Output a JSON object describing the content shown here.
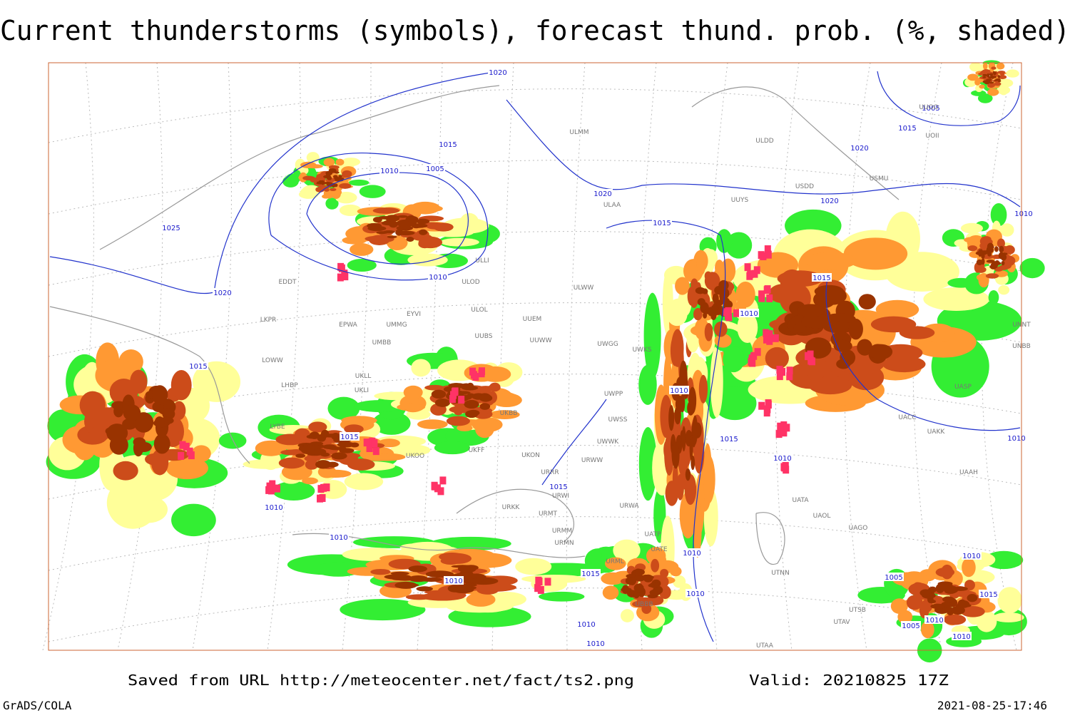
{
  "header": {
    "title": "Current thunderstorms (symbols), forecast thund. prob. (%, shaded)"
  },
  "footer": {
    "source": "Saved from URL http://meteocenter.net/fact/ts2.png",
    "valid": "Valid: 20210825 17Z",
    "software": "GrADS/COLA",
    "timestamp": "2021-08-25-17:46"
  },
  "isobar_labels": [
    1020,
    1015,
    1010,
    1005,
    1025,
    1020,
    1010,
    1020,
    1015,
    1020,
    1005,
    1015,
    1020,
    1015,
    1015,
    1015,
    1015,
    1010,
    1010,
    1010,
    1010,
    1015,
    1010,
    1010,
    1010,
    1010,
    1010,
    1015,
    1005,
    1010,
    1005,
    1010,
    1010,
    1015,
    1010,
    1010,
    1010
  ],
  "stations": [
    "ULMM",
    "ULDD",
    "USMU",
    "UUYS",
    "USDD",
    "ULAA",
    "ULLI",
    "ULOD",
    "ULOL",
    "ULWW",
    "EYVI",
    "UMMG",
    "EPWA",
    "EDDT",
    "LKPR",
    "UMBB",
    "UUEM",
    "UUWW",
    "UWGG",
    "UWKS",
    "UUBS",
    "UNNT",
    "UNBB",
    "UASP",
    "UACC",
    "UAKK",
    "UAAH",
    "UATA",
    "UAOL",
    "UAGO",
    "UTNN",
    "UTSB",
    "UTAV",
    "UTAA",
    "UKBB",
    "UKLL",
    "UKLI",
    "LHBP",
    "LOWW",
    "LYBE",
    "UKOO",
    "UKFF",
    "URRR",
    "URWI",
    "URKK",
    "URMT",
    "URMM",
    "URMN",
    "URML",
    "URWA",
    "UATP",
    "UATE",
    "UBBB",
    "UWPP",
    "UWSS",
    "URWW",
    "UWWK",
    "UKON",
    "UUOO",
    "UOII"
  ]
}
